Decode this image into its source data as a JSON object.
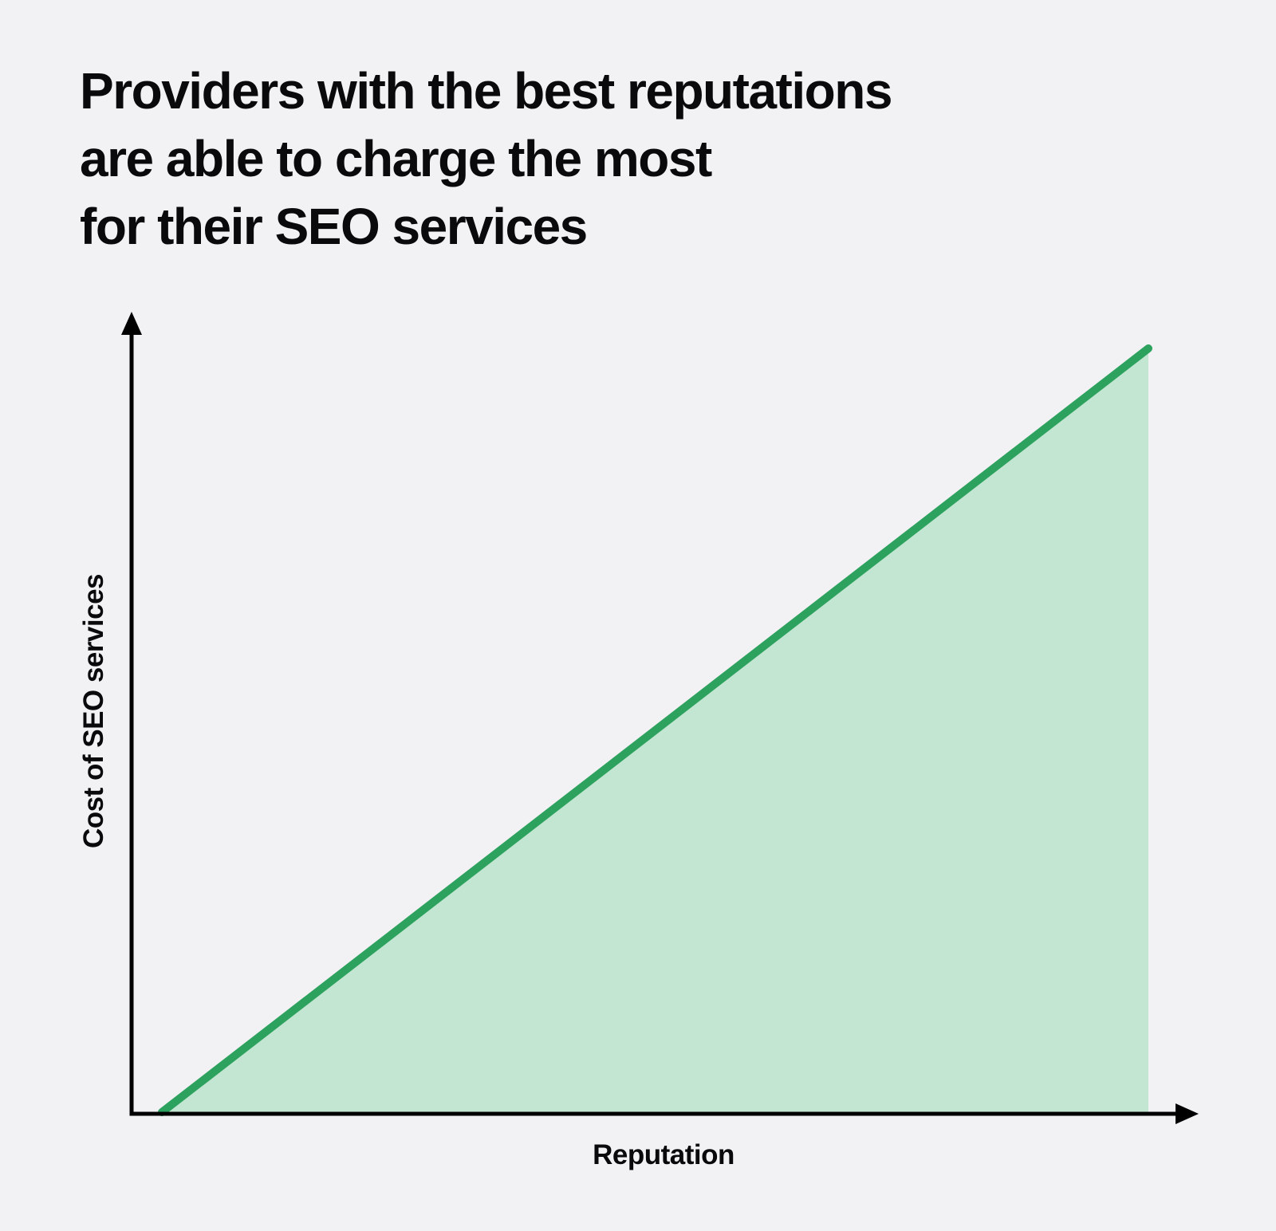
{
  "title": {
    "full": "Providers with the best reputations are able to charge the most for their SEO services",
    "lines": [
      "Providers with the best reputations",
      "are able to charge the most",
      "for their SEO services"
    ]
  },
  "axes": {
    "ylabel": "Cost of SEO services",
    "xlabel": "Reputation"
  },
  "colors": {
    "background": "#f2f2f4",
    "line": "#2da25e",
    "fill": "#c3e6d2",
    "axis": "#000000",
    "text": "#0a0a0c"
  },
  "chart_data": {
    "type": "area",
    "title": "Providers with the best reputations are able to charge the most for their SEO services",
    "xlabel": "Reputation",
    "ylabel": "Cost of SEO services",
    "x": [
      0,
      1
    ],
    "series": [
      {
        "name": "Cost of SEO services",
        "values": [
          0,
          1
        ]
      }
    ],
    "xlim": [
      0,
      1
    ],
    "ylim": [
      0,
      1
    ],
    "tick_labels": "none",
    "grid": false,
    "legend": false,
    "line_width": 10,
    "axis_arrows": true
  }
}
